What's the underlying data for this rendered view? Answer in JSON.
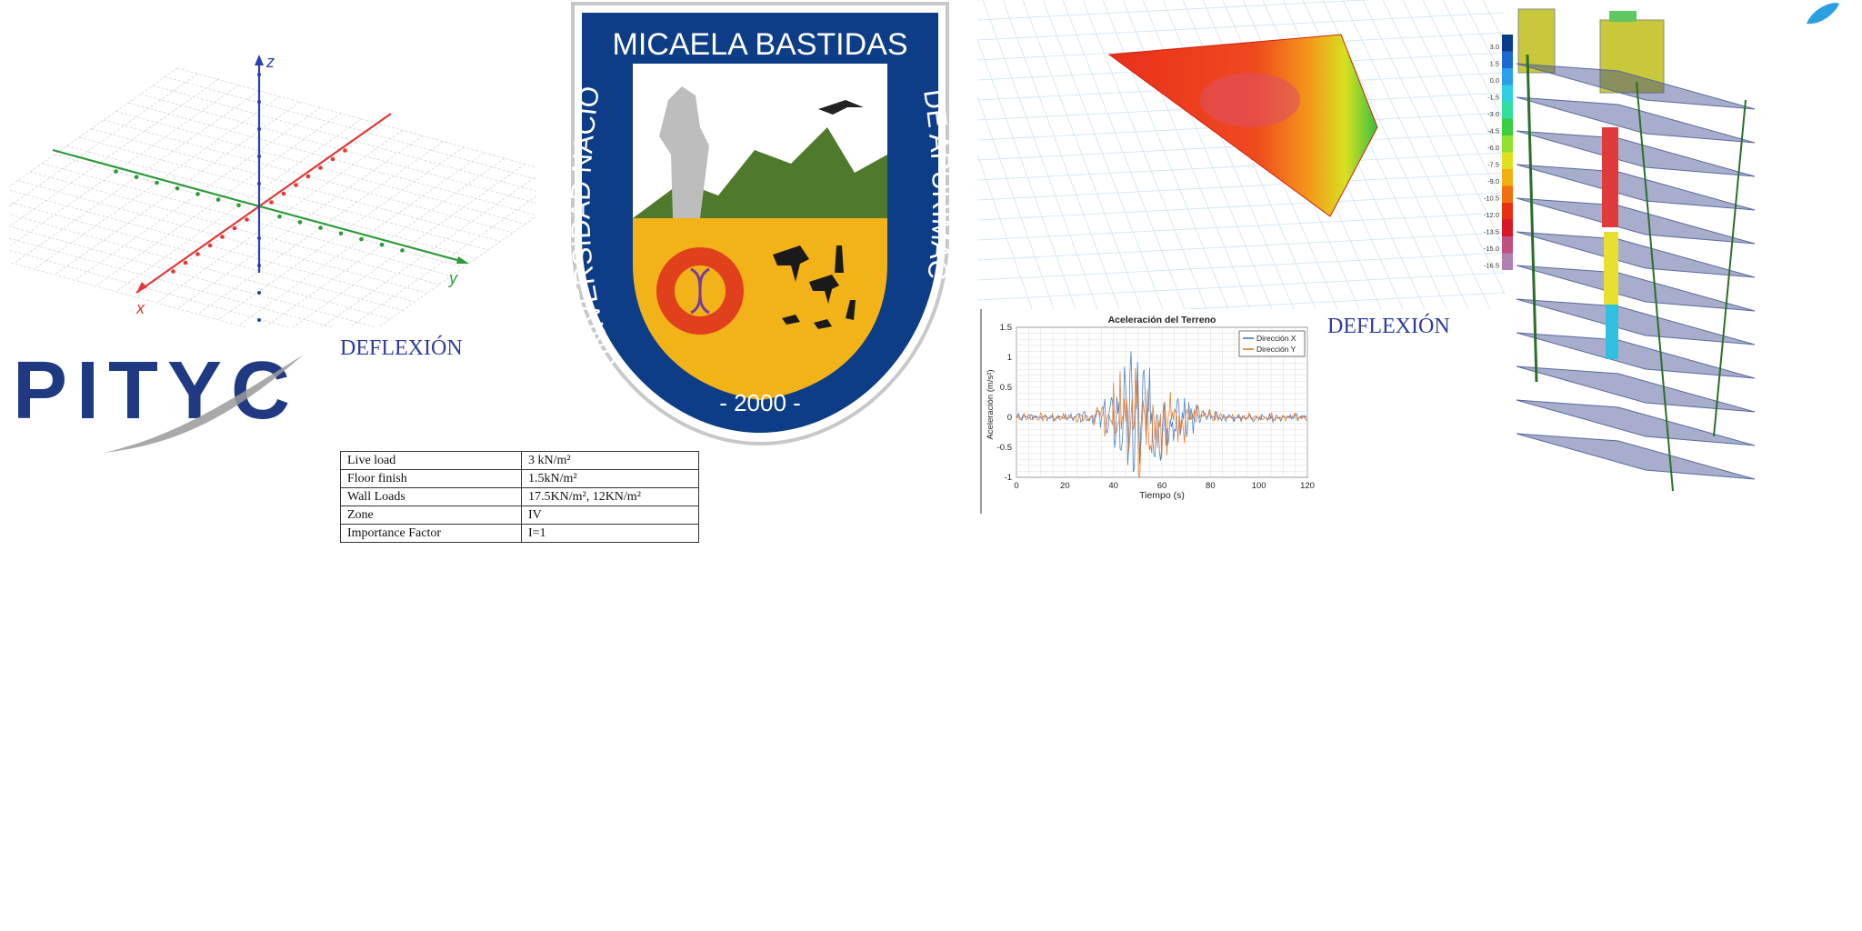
{
  "axes_figure": {
    "x_label": "x",
    "y_label": "y",
    "z_label": "z",
    "colors": {
      "x": "#e03a3a",
      "y": "#2e9a3a",
      "z": "#2b3fb0",
      "grid": "#cfcfcf"
    }
  },
  "pityc_logo": {
    "text": "PITYC",
    "colors": {
      "letters": "#1f3a82",
      "swoosh": "#9a9a9a"
    }
  },
  "seal": {
    "top_text": "MICAELA BASTIDAS",
    "left_text": "UNIVERSIDAD NACIONAL",
    "right_text": "DE APURIMAC",
    "year": "- 2000 -",
    "colors": {
      "ring": "#0d3d86",
      "shield_yellow": "#f2b319",
      "gear": "#e0401c",
      "mountain": "#4f7a2b"
    }
  },
  "deflection_labels": {
    "left": "DEFLEXIÓN",
    "right": "DEFLEXIÓN"
  },
  "loads_table": {
    "rows": [
      {
        "label": "Live load",
        "value": "3 kN/m²"
      },
      {
        "label": "Floor finish",
        "value": "1.5kN/m²"
      },
      {
        "label": "Wall Loads",
        "value": "17.5KN/m², 12KN/m²"
      },
      {
        "label": "Zone",
        "value": "IV"
      },
      {
        "label": "Importance Factor",
        "value": "I=1"
      }
    ]
  },
  "contour_legend": {
    "ticks": [
      "3.0",
      "1.5",
      "0.0",
      "-1.5",
      "-3.0",
      "-4.5",
      "-6.0",
      "-7.5",
      "-9.0",
      "-10.5",
      "-12.0",
      "-13.5",
      "-15.0",
      "-16.5"
    ]
  },
  "chart_data": {
    "type": "line",
    "title": "Aceleración del Terreno",
    "xlabel": "Tiempo (s)",
    "ylabel": "Aceleración (m/s²)",
    "xlim": [
      0,
      120
    ],
    "ylim": [
      -1,
      1.5
    ],
    "xticks": [
      "0",
      "20",
      "40",
      "60",
      "80",
      "100",
      "120"
    ],
    "yticks": [
      "1.5",
      "1",
      "0.5",
      "0",
      "-0.5",
      "-1"
    ],
    "grid": true,
    "legend_position": "top-right",
    "series": [
      {
        "name": "Dirección X",
        "color": "#2f6fc0"
      },
      {
        "name": "Dirección Y",
        "color": "#e07020"
      }
    ]
  }
}
